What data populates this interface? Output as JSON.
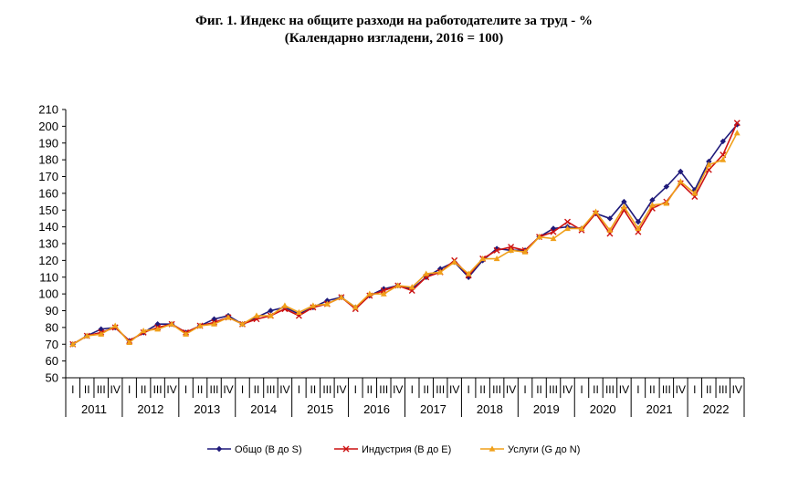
{
  "chart_data": {
    "type": "line",
    "title": "Фиг. 1. Индекс на общите разходи на работодателите за труд - %",
    "subtitle": "(Календарно изгладени, 2016 = 100)",
    "ylim": [
      50,
      210
    ],
    "yticks": [
      50,
      60,
      70,
      80,
      90,
      100,
      110,
      120,
      130,
      140,
      150,
      160,
      170,
      180,
      190,
      200,
      210
    ],
    "years": [
      "2011",
      "2012",
      "2013",
      "2014",
      "2015",
      "2016",
      "2017",
      "2018",
      "2019",
      "2020",
      "2021",
      "2022"
    ],
    "quarters": [
      "I",
      "II",
      "III",
      "IV"
    ],
    "series": [
      {
        "name": "Общо (B до S)",
        "color": "#1f1a7a",
        "marker": "diamond",
        "values": [
          70,
          75,
          79,
          80,
          72,
          77,
          82,
          82,
          77,
          81,
          85,
          87,
          82,
          86,
          90,
          92,
          88,
          92,
          96,
          98,
          92,
          99,
          103,
          105,
          103,
          110,
          115,
          119,
          110,
          120,
          127,
          126,
          126,
          134,
          139,
          140,
          139,
          148,
          145,
          155,
          143,
          156,
          164,
          173,
          162,
          179,
          191,
          201
        ]
      },
      {
        "name": "Индустрия (B до E)",
        "color": "#cc1111",
        "marker": "x",
        "values": [
          70,
          75,
          77,
          80,
          72,
          77,
          80,
          82,
          77,
          81,
          83,
          86,
          82,
          85,
          87,
          91,
          87,
          92,
          94,
          98,
          91,
          99,
          102,
          105,
          102,
          110,
          113,
          120,
          111,
          121,
          126,
          128,
          126,
          134,
          137,
          143,
          138,
          148,
          136,
          150,
          137,
          151,
          155,
          166,
          158,
          174,
          183,
          202
        ]
      },
      {
        "name": "Услуги (G до N)",
        "color": "#f0a01a",
        "marker": "triangle",
        "values": [
          70,
          75,
          76,
          81,
          71,
          78,
          79,
          82,
          76,
          81,
          82,
          86,
          82,
          87,
          87,
          93,
          89,
          93,
          94,
          98,
          92,
          100,
          100,
          105,
          104,
          112,
          113,
          119,
          112,
          121,
          121,
          126,
          125,
          134,
          133,
          139,
          139,
          149,
          138,
          152,
          139,
          153,
          154,
          167,
          160,
          177,
          180,
          196
        ]
      }
    ]
  }
}
